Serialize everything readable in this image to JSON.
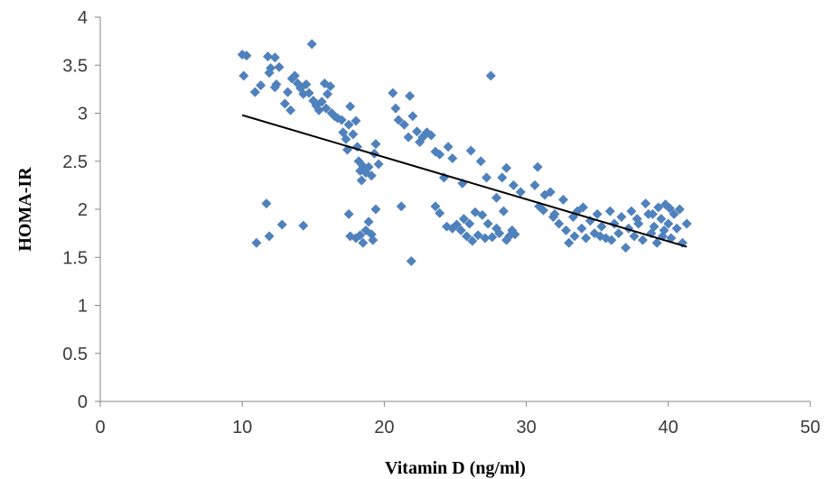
{
  "chart_data": {
    "type": "scatter",
    "title": "",
    "xlabel": "Vitamin D (ng/ml)",
    "ylabel": "HOMA-IR",
    "xlim": [
      0,
      50
    ],
    "ylim": [
      0,
      4
    ],
    "xticks": [
      0,
      10,
      20,
      30,
      40,
      50
    ],
    "yticks": [
      0,
      0.5,
      1,
      1.5,
      2,
      2.5,
      3,
      3.5,
      4
    ],
    "xtick_labels": [
      "0",
      "10",
      "20",
      "30",
      "40",
      "50"
    ],
    "ytick_labels": [
      "0",
      "0.5",
      "1",
      "1.5",
      "2",
      "2.5",
      "3",
      "3.5",
      "4"
    ],
    "grid": false,
    "legend": "none",
    "marker_color": "#4F81BD",
    "trendline_color": "#000000",
    "trendline": {
      "x": [
        10,
        41.3
      ],
      "y": [
        2.98,
        1.61
      ]
    },
    "points": [
      [
        10.0,
        3.61
      ],
      [
        10.3,
        3.6
      ],
      [
        10.1,
        3.39
      ],
      [
        10.9,
        3.22
      ],
      [
        11.3,
        3.29
      ],
      [
        11.8,
        3.59
      ],
      [
        12.3,
        3.58
      ],
      [
        12.0,
        3.47
      ],
      [
        12.6,
        3.48
      ],
      [
        11.9,
        3.42
      ],
      [
        12.4,
        3.3
      ],
      [
        12.3,
        3.27
      ],
      [
        13.0,
        3.1
      ],
      [
        13.4,
        3.03
      ],
      [
        13.2,
        3.22
      ],
      [
        13.5,
        3.36
      ],
      [
        13.7,
        3.39
      ],
      [
        13.9,
        3.31
      ],
      [
        14.1,
        3.26
      ],
      [
        14.3,
        3.2
      ],
      [
        14.5,
        3.3
      ],
      [
        14.9,
        3.72
      ],
      [
        14.7,
        3.21
      ],
      [
        15.0,
        3.13
      ],
      [
        15.2,
        3.08
      ],
      [
        15.4,
        3.03
      ],
      [
        15.6,
        3.12
      ],
      [
        15.8,
        3.31
      ],
      [
        16.0,
        3.2
      ],
      [
        16.2,
        3.28
      ],
      [
        15.9,
        3.05
      ],
      [
        16.3,
        3.0
      ],
      [
        16.5,
        2.97
      ],
      [
        16.7,
        2.95
      ],
      [
        17.0,
        2.93
      ],
      [
        17.1,
        2.8
      ],
      [
        17.3,
        2.73
      ],
      [
        17.5,
        2.88
      ],
      [
        17.6,
        3.07
      ],
      [
        17.8,
        2.78
      ],
      [
        18.0,
        2.92
      ],
      [
        18.1,
        2.65
      ],
      [
        18.2,
        2.5
      ],
      [
        18.3,
        2.4
      ],
      [
        18.5,
        2.45
      ],
      [
        18.4,
        2.3
      ],
      [
        18.7,
        2.38
      ],
      [
        18.9,
        2.44
      ],
      [
        19.1,
        2.35
      ],
      [
        19.3,
        2.58
      ],
      [
        19.4,
        2.68
      ],
      [
        19.6,
        2.47
      ],
      [
        17.4,
        2.62
      ],
      [
        11.0,
        1.65
      ],
      [
        11.7,
        2.06
      ],
      [
        11.9,
        1.72
      ],
      [
        12.8,
        1.84
      ],
      [
        14.3,
        1.83
      ],
      [
        17.5,
        1.95
      ],
      [
        17.6,
        1.72
      ],
      [
        18.0,
        1.7
      ],
      [
        18.3,
        1.73
      ],
      [
        18.5,
        1.65
      ],
      [
        18.7,
        1.78
      ],
      [
        18.9,
        1.87
      ],
      [
        19.1,
        1.74
      ],
      [
        19.2,
        1.68
      ],
      [
        19.4,
        2.0
      ],
      [
        20.6,
        3.21
      ],
      [
        20.8,
        3.05
      ],
      [
        21.0,
        2.93
      ],
      [
        21.4,
        2.88
      ],
      [
        21.7,
        2.75
      ],
      [
        21.8,
        3.18
      ],
      [
        22.0,
        2.97
      ],
      [
        22.3,
        2.81
      ],
      [
        22.5,
        2.7
      ],
      [
        22.7,
        2.75
      ],
      [
        23.0,
        2.8
      ],
      [
        23.3,
        2.77
      ],
      [
        23.6,
        2.6
      ],
      [
        23.9,
        2.57
      ],
      [
        24.2,
        2.33
      ],
      [
        24.5,
        2.65
      ],
      [
        24.8,
        2.53
      ],
      [
        25.5,
        2.27
      ],
      [
        26.1,
        2.61
      ],
      [
        26.8,
        2.5
      ],
      [
        27.2,
        2.33
      ],
      [
        27.5,
        3.39
      ],
      [
        27.9,
        2.12
      ],
      [
        28.3,
        2.33
      ],
      [
        28.6,
        2.43
      ],
      [
        29.1,
        2.25
      ],
      [
        29.6,
        2.18
      ],
      [
        30.6,
        2.25
      ],
      [
        30.8,
        2.44
      ],
      [
        31.3,
        2.15
      ],
      [
        31.7,
        2.18
      ],
      [
        21.2,
        2.03
      ],
      [
        21.9,
        1.46
      ],
      [
        23.6,
        2.03
      ],
      [
        23.9,
        1.96
      ],
      [
        24.4,
        1.82
      ],
      [
        24.8,
        1.8
      ],
      [
        25.1,
        1.84
      ],
      [
        25.4,
        1.78
      ],
      [
        25.6,
        1.9
      ],
      [
        25.8,
        1.72
      ],
      [
        26.0,
        1.85
      ],
      [
        26.2,
        1.67
      ],
      [
        26.4,
        1.97
      ],
      [
        26.6,
        1.73
      ],
      [
        26.9,
        1.94
      ],
      [
        27.1,
        1.7
      ],
      [
        27.3,
        1.85
      ],
      [
        27.6,
        1.71
      ],
      [
        27.9,
        1.8
      ],
      [
        28.1,
        1.75
      ],
      [
        28.4,
        1.98
      ],
      [
        28.6,
        1.68
      ],
      [
        28.8,
        1.72
      ],
      [
        29.0,
        1.78
      ],
      [
        29.2,
        1.74
      ],
      [
        30.9,
        2.03
      ],
      [
        31.2,
        1.99
      ],
      [
        32.0,
        1.95
      ],
      [
        32.3,
        1.85
      ],
      [
        32.6,
        2.1
      ],
      [
        32.8,
        1.78
      ],
      [
        33.0,
        1.65
      ],
      [
        33.3,
        1.92
      ],
      [
        33.6,
        1.98
      ],
      [
        33.9,
        1.8
      ],
      [
        34.2,
        1.7
      ],
      [
        34.5,
        1.88
      ],
      [
        34.8,
        1.75
      ],
      [
        35.0,
        1.95
      ],
      [
        35.3,
        1.82
      ],
      [
        35.6,
        1.7
      ],
      [
        35.9,
        1.98
      ],
      [
        36.2,
        1.85
      ],
      [
        36.5,
        1.75
      ],
      [
        36.7,
        1.92
      ],
      [
        37.0,
        1.6
      ],
      [
        37.2,
        1.8
      ],
      [
        37.4,
        1.98
      ],
      [
        37.6,
        1.72
      ],
      [
        37.9,
        1.85
      ],
      [
        38.2,
        1.68
      ],
      [
        38.4,
        2.06
      ],
      [
        38.6,
        1.95
      ],
      [
        38.8,
        1.75
      ],
      [
        39.0,
        1.82
      ],
      [
        39.2,
        1.65
      ],
      [
        39.3,
        2.02
      ],
      [
        39.5,
        1.9
      ],
      [
        39.6,
        1.72
      ],
      [
        39.8,
        2.05
      ],
      [
        40.0,
        1.85
      ],
      [
        40.2,
        1.7
      ],
      [
        40.4,
        1.95
      ],
      [
        40.6,
        1.8
      ],
      [
        40.8,
        2.0
      ],
      [
        41.0,
        1.65
      ],
      [
        41.3,
        1.85
      ],
      [
        34.0,
        2.02
      ],
      [
        35.2,
        1.72
      ],
      [
        36.0,
        1.68
      ],
      [
        37.8,
        1.9
      ],
      [
        38.9,
        1.95
      ],
      [
        39.7,
        1.78
      ],
      [
        40.1,
        2.01
      ],
      [
        33.4,
        1.72
      ],
      [
        31.9,
        1.92
      ]
    ]
  }
}
